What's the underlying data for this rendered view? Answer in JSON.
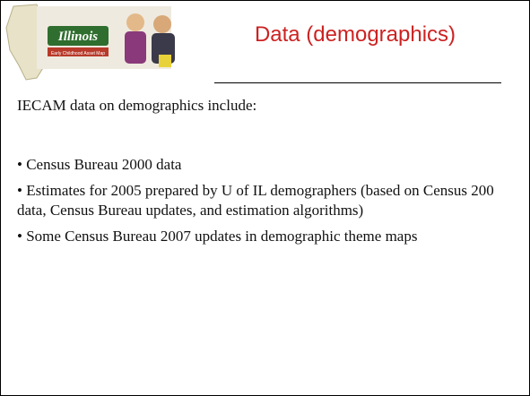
{
  "header": {
    "title": "Data (demographics)",
    "logo": {
      "name": "Illinois",
      "subtitle": "Early Childhood Asset Map"
    }
  },
  "body": {
    "intro": "IECAM data on demographics include:",
    "bullets": [
      "• Census Bureau 2000 data",
      "• Estimates for 2005 prepared by U of IL demographers (based on Census 200 data, Census Bureau updates, and estimation algorithms)",
      "• Some Census Bureau 2007 updates in demographic theme maps"
    ]
  }
}
